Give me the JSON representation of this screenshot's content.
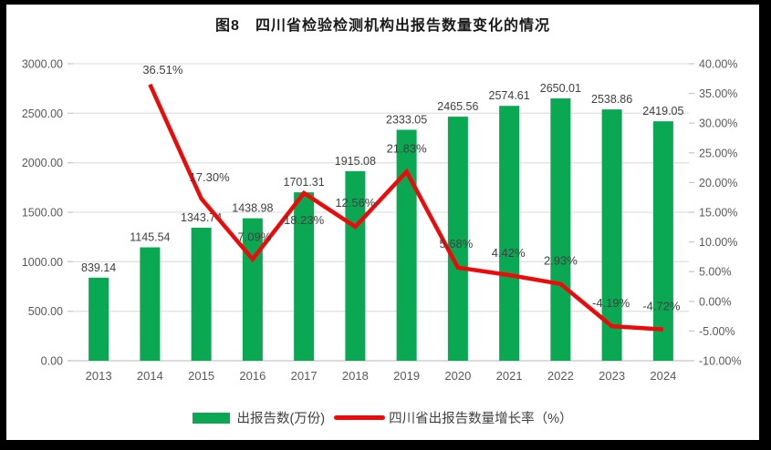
{
  "title": "图8　四川省检验检测机构出报告数量变化的情况",
  "legend": {
    "bar": "出报告数(万份)",
    "line": "四川省出报告数量增长率（%）"
  },
  "colors": {
    "bar_green": "#0AA853",
    "line_red": "#EC0B0B",
    "grid": "#E2E2E2",
    "axis_line": "#C9C9C9",
    "data_label": "#404040",
    "axis_label": "#595959",
    "frame": "#000000",
    "background": "#FFFFFF"
  },
  "chart_data": {
    "type": "bar+line",
    "title": "图8　四川省检验检测机构出报告数量变化的情况",
    "categories": [
      "2013",
      "2014",
      "2015",
      "2016",
      "2017",
      "2018",
      "2019",
      "2020",
      "2021",
      "2022",
      "2023",
      "2024"
    ],
    "series": [
      {
        "name": "出报告数(万份)",
        "chart": "bar",
        "axis": "left",
        "values": [
          839.14,
          1145.54,
          1343.74,
          1438.98,
          1701.31,
          1915.08,
          2333.05,
          2465.56,
          2574.61,
          2650.01,
          2538.86,
          2419.05
        ]
      },
      {
        "name": "四川省出报告数量增长率（%）",
        "chart": "line",
        "axis": "right",
        "start_category": "2014",
        "values": [
          36.51,
          17.3,
          7.09,
          18.23,
          12.56,
          21.83,
          5.68,
          4.42,
          2.93,
          -4.19,
          -4.72
        ]
      }
    ],
    "left_axis": {
      "min": 0,
      "max": 3000,
      "step": 500,
      "tick_labels": [
        "3000.00",
        "2500.00",
        "2000.00",
        "1500.00",
        "1000.00",
        "500.00",
        "0.00"
      ]
    },
    "right_axis": {
      "min": -10,
      "max": 40,
      "step": 5,
      "tick_labels": [
        "40.00%",
        "35.00%",
        "30.00%",
        "25.00%",
        "20.00%",
        "15.00%",
        "10.00%",
        "5.00%",
        "0.00%",
        "-5.00%",
        "-10.00%"
      ]
    },
    "grid": true,
    "legend_position": "bottom"
  }
}
